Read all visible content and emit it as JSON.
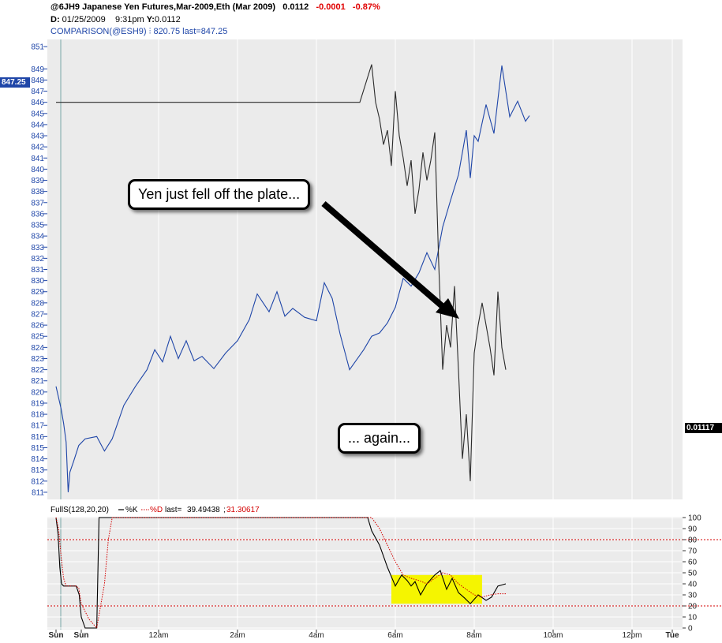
{
  "header": {
    "symbol_line": "@6JH9 Japanese Yen Futures,Mar-2009,Eth (Mar 2009)",
    "price": "0.0112",
    "change": "-0.0001",
    "change_pct": "-0.87%",
    "date_label": "D:",
    "date": "01/25/2009",
    "time": "9:31pm",
    "y_label": "Y:",
    "y_value": "0.0112",
    "comparison": "COMPARISON(@ESH9) ⫶ 820.75 last=847.25"
  },
  "callouts": {
    "top": "Yen just fell off the plate...",
    "bottom": "... again..."
  },
  "tags": {
    "left_value": "847.25",
    "right_value": "0.01117"
  },
  "colors": {
    "comparison": "#1f46a8",
    "yen": "#2b2b2b",
    "k_line": "#000000",
    "d_line": "#d40000",
    "highlight": "#f5f500",
    "panel_bg": "#ebebeb"
  },
  "chart_data": [
    {
      "type": "line",
      "x_labels": [
        "Sun",
        "Sun",
        "12am",
        "2am",
        "4am",
        "6am",
        "8am",
        "10am",
        "12pm",
        "Tue"
      ],
      "y_ticks": [
        811,
        812,
        813,
        814,
        815,
        816,
        817,
        818,
        819,
        820,
        821,
        822,
        823,
        824,
        825,
        826,
        827,
        828,
        829,
        830,
        831,
        832,
        833,
        834,
        835,
        836,
        837,
        838,
        839,
        840,
        841,
        842,
        843,
        844,
        845,
        846,
        847,
        848,
        849,
        851
      ],
      "ylim": [
        810.5,
        851.5
      ],
      "series": [
        {
          "name": "COMPARISON(@ESH9)",
          "values": [
            [
              0.0,
              820.5
            ],
            [
              0.1,
              819.5
            ],
            [
              0.2,
              818.5
            ],
            [
              0.3,
              817.2
            ],
            [
              0.4,
              815.5
            ],
            [
              0.48,
              811.0
            ],
            [
              0.55,
              812.8
            ],
            [
              0.7,
              813.8
            ],
            [
              0.9,
              815.2
            ],
            [
              1.05,
              815.8
            ],
            [
              1.2,
              816.0
            ],
            [
              1.3,
              814.7
            ],
            [
              1.4,
              815.8
            ],
            [
              1.55,
              818.8
            ],
            [
              1.7,
              820.5
            ],
            [
              1.85,
              822.0
            ],
            [
              1.95,
              823.8
            ],
            [
              2.05,
              822.7
            ],
            [
              2.15,
              825.0
            ],
            [
              2.25,
              823.0
            ],
            [
              2.35,
              824.6
            ],
            [
              2.45,
              822.8
            ],
            [
              2.55,
              823.2
            ],
            [
              2.7,
              822.1
            ],
            [
              2.85,
              823.5
            ],
            [
              3.0,
              824.6
            ],
            [
              3.15,
              826.5
            ],
            [
              3.25,
              828.8
            ],
            [
              3.4,
              827.2
            ],
            [
              3.5,
              829.0
            ],
            [
              3.6,
              826.8
            ],
            [
              3.7,
              827.5
            ],
            [
              3.85,
              826.7
            ],
            [
              4.0,
              826.4
            ],
            [
              4.1,
              829.8
            ],
            [
              4.2,
              828.4
            ],
            [
              4.3,
              825.2
            ],
            [
              4.42,
              822.0
            ],
            [
              4.5,
              822.8
            ],
            [
              4.6,
              823.8
            ],
            [
              4.7,
              825.0
            ],
            [
              4.8,
              825.3
            ],
            [
              4.9,
              826.2
            ],
            [
              5.0,
              827.6
            ],
            [
              5.1,
              830.2
            ],
            [
              5.2,
              829.5
            ],
            [
              5.3,
              830.7
            ],
            [
              5.4,
              832.5
            ],
            [
              5.5,
              831.0
            ],
            [
              5.6,
              834.8
            ],
            [
              5.7,
              837.2
            ],
            [
              5.8,
              839.5
            ],
            [
              5.9,
              843.5
            ],
            [
              5.95,
              839.2
            ],
            [
              6.0,
              843.0
            ],
            [
              6.05,
              842.5
            ],
            [
              6.15,
              845.8
            ],
            [
              6.25,
              843.2
            ],
            [
              6.35,
              849.3
            ],
            [
              6.45,
              844.7
            ],
            [
              6.55,
              846.1
            ],
            [
              6.65,
              844.3
            ],
            [
              6.7,
              844.8
            ]
          ]
        },
        {
          "name": "@6JH9",
          "values": [
            [
              0.0,
              846.0
            ],
            [
              3.0,
              846.0
            ],
            [
              4.0,
              846.0
            ],
            [
              4.55,
              846.0
            ],
            [
              4.7,
              849.4
            ],
            [
              4.75,
              846.0
            ],
            [
              4.8,
              844.5
            ],
            [
              4.85,
              842.2
            ],
            [
              4.9,
              843.5
            ],
            [
              4.95,
              840.3
            ],
            [
              5.0,
              847.0
            ],
            [
              5.05,
              843.0
            ],
            [
              5.1,
              841.0
            ],
            [
              5.15,
              838.5
            ],
            [
              5.2,
              840.8
            ],
            [
              5.25,
              836.0
            ],
            [
              5.3,
              838.2
            ],
            [
              5.35,
              841.5
            ],
            [
              5.4,
              839.0
            ],
            [
              5.45,
              840.8
            ],
            [
              5.5,
              843.3
            ],
            [
              5.55,
              831.5
            ],
            [
              5.6,
              822.0
            ],
            [
              5.65,
              826.0
            ],
            [
              5.7,
              824.0
            ],
            [
              5.75,
              829.5
            ],
            [
              5.8,
              822.0
            ],
            [
              5.85,
              814.0
            ],
            [
              5.9,
              818.0
            ],
            [
              5.95,
              812.0
            ],
            [
              6.0,
              823.5
            ],
            [
              6.05,
              826.0
            ],
            [
              6.1,
              828.0
            ],
            [
              6.15,
              826.0
            ],
            [
              6.2,
              824.0
            ],
            [
              6.25,
              821.5
            ],
            [
              6.3,
              829.0
            ],
            [
              6.35,
              824.0
            ],
            [
              6.4,
              822.0
            ]
          ]
        }
      ]
    },
    {
      "type": "line",
      "title": "FullS(128,20,20)",
      "legend": [
        "%K",
        "%D"
      ],
      "last_label": "last=",
      "last_k": "39.49438",
      "last_d": "31.30617",
      "y_ticks": [
        0,
        10,
        20,
        30,
        40,
        50,
        60,
        70,
        80,
        90,
        100
      ],
      "ylim": [
        0,
        100
      ],
      "reference_lines": [
        20,
        80
      ],
      "series": [
        {
          "name": "%K",
          "values": [
            [
              0.0,
              100
            ],
            [
              0.08,
              85
            ],
            [
              0.15,
              55
            ],
            [
              0.22,
              40
            ],
            [
              0.3,
              38
            ],
            [
              0.4,
              38
            ],
            [
              0.6,
              38
            ],
            [
              0.8,
              38
            ],
            [
              0.92,
              30
            ],
            [
              1.0,
              10
            ],
            [
              1.05,
              0
            ],
            [
              1.1,
              0
            ],
            [
              1.2,
              0
            ],
            [
              1.23,
              100
            ],
            [
              1.3,
              100
            ],
            [
              2.0,
              100
            ],
            [
              3.0,
              100
            ],
            [
              4.0,
              100
            ],
            [
              4.65,
              100
            ],
            [
              4.7,
              88
            ],
            [
              4.8,
              75
            ],
            [
              4.9,
              55
            ],
            [
              5.0,
              38
            ],
            [
              5.08,
              48
            ],
            [
              5.15,
              43
            ],
            [
              5.2,
              38
            ],
            [
              5.25,
              42
            ],
            [
              5.32,
              30
            ],
            [
              5.4,
              40
            ],
            [
              5.5,
              48
            ],
            [
              5.57,
              52
            ],
            [
              5.65,
              35
            ],
            [
              5.72,
              45
            ],
            [
              5.8,
              32
            ],
            [
              5.88,
              27
            ],
            [
              5.95,
              22
            ],
            [
              6.05,
              30
            ],
            [
              6.15,
              25
            ],
            [
              6.22,
              28
            ],
            [
              6.3,
              38
            ],
            [
              6.4,
              40
            ]
          ]
        },
        {
          "name": "%D",
          "values": [
            [
              0.0,
              100
            ],
            [
              0.1,
              90
            ],
            [
              0.2,
              65
            ],
            [
              0.3,
              45
            ],
            [
              0.4,
              38
            ],
            [
              0.8,
              38
            ],
            [
              0.9,
              36
            ],
            [
              1.0,
              22
            ],
            [
              1.1,
              8
            ],
            [
              1.2,
              0
            ],
            [
              1.3,
              40
            ],
            [
              1.35,
              80
            ],
            [
              1.4,
              100
            ],
            [
              4.7,
              100
            ],
            [
              4.8,
              90
            ],
            [
              4.9,
              75
            ],
            [
              5.0,
              60
            ],
            [
              5.1,
              48
            ],
            [
              5.2,
              45
            ],
            [
              5.3,
              43
            ],
            [
              5.4,
              40
            ],
            [
              5.5,
              45
            ],
            [
              5.6,
              50
            ],
            [
              5.7,
              48
            ],
            [
              5.8,
              40
            ],
            [
              5.9,
              35
            ],
            [
              6.0,
              30
            ],
            [
              6.1,
              28
            ],
            [
              6.2,
              30
            ],
            [
              6.3,
              31
            ],
            [
              6.4,
              31
            ]
          ]
        }
      ],
      "highlight_box": {
        "x": [
          5.0,
          6.05
        ],
        "y": [
          22,
          48
        ]
      }
    }
  ]
}
